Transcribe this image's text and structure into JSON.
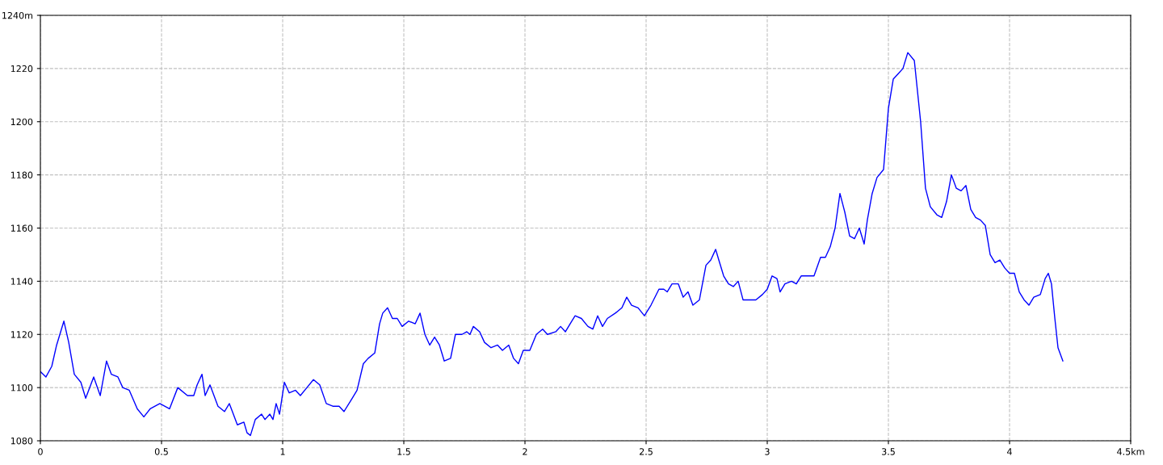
{
  "chart_data": {
    "type": "line",
    "x": [
      0,
      0.023,
      0.047,
      0.067,
      0.097,
      0.117,
      0.14,
      0.167,
      0.187,
      0.22,
      0.247,
      0.273,
      0.293,
      0.32,
      0.34,
      0.367,
      0.4,
      0.427,
      0.453,
      0.493,
      0.533,
      0.567,
      0.607,
      0.633,
      0.647,
      0.667,
      0.68,
      0.7,
      0.733,
      0.76,
      0.78,
      0.813,
      0.84,
      0.853,
      0.867,
      0.887,
      0.913,
      0.927,
      0.947,
      0.96,
      0.973,
      0.987,
      1.007,
      1.027,
      1.053,
      1.073,
      1.1,
      1.127,
      1.153,
      1.18,
      1.207,
      1.233,
      1.253,
      1.287,
      1.307,
      1.333,
      1.353,
      1.38,
      1.4,
      1.413,
      1.433,
      1.453,
      1.473,
      1.493,
      1.52,
      1.547,
      1.567,
      1.587,
      1.607,
      1.627,
      1.647,
      1.667,
      1.693,
      1.713,
      1.74,
      1.76,
      1.773,
      1.787,
      1.813,
      1.833,
      1.86,
      1.887,
      1.907,
      1.933,
      1.953,
      1.973,
      1.993,
      2.02,
      2.047,
      2.073,
      2.093,
      2.127,
      2.147,
      2.167,
      2.193,
      2.207,
      2.233,
      2.26,
      2.28,
      2.3,
      2.32,
      2.34,
      2.373,
      2.4,
      2.42,
      2.44,
      2.467,
      2.493,
      2.52,
      2.553,
      2.573,
      2.587,
      2.607,
      2.633,
      2.653,
      2.673,
      2.693,
      2.72,
      2.747,
      2.767,
      2.787,
      2.8,
      2.82,
      2.84,
      2.86,
      2.88,
      2.9,
      2.927,
      2.953,
      2.98,
      3.0,
      3.02,
      3.04,
      3.053,
      3.073,
      3.1,
      3.12,
      3.14,
      3.167,
      3.193,
      3.22,
      3.24,
      3.26,
      3.28,
      3.3,
      3.32,
      3.34,
      3.36,
      3.38,
      3.4,
      3.413,
      3.433,
      3.453,
      3.48,
      3.5,
      3.52,
      3.54,
      3.56,
      3.58,
      3.607,
      3.633,
      3.653,
      3.673,
      3.7,
      3.72,
      3.74,
      3.76,
      3.78,
      3.8,
      3.82,
      3.84,
      3.86,
      3.88,
      3.9,
      3.92,
      3.94,
      3.96,
      3.98,
      4.0,
      4.02,
      4.04,
      4.06,
      4.08,
      4.1,
      4.127,
      4.147,
      4.16,
      4.173,
      4.187,
      4.2,
      4.22
    ],
    "series": [
      {
        "color": "#0000ff",
        "values": [
          1106,
          1104,
          1108,
          1116,
          1125,
          1117,
          1105,
          1102,
          1096,
          1104,
          1097,
          1110,
          1105,
          1104,
          1100,
          1099,
          1092,
          1089,
          1092,
          1094,
          1092,
          1100,
          1097,
          1097,
          1101,
          1105,
          1097,
          1101,
          1093,
          1091,
          1094,
          1086,
          1087,
          1083,
          1082,
          1088,
          1090,
          1088,
          1090,
          1088,
          1094,
          1090,
          1102,
          1098,
          1099,
          1097,
          1100,
          1103,
          1101,
          1094,
          1093,
          1093,
          1091,
          1096,
          1099,
          1109,
          1111,
          1113,
          1124,
          1128,
          1130,
          1126,
          1126,
          1123,
          1125,
          1124,
          1128,
          1120,
          1116,
          1119,
          1116,
          1110,
          1111,
          1120,
          1120,
          1121,
          1120,
          1123,
          1121,
          1117,
          1115,
          1116,
          1114,
          1116,
          1111,
          1109,
          1114,
          1114,
          1120,
          1122,
          1120,
          1121,
          1123,
          1121,
          1125,
          1127,
          1126,
          1123,
          1122,
          1127,
          1123,
          1126,
          1128,
          1130,
          1134,
          1131,
          1130,
          1127,
          1131,
          1137,
          1137,
          1136,
          1139,
          1139,
          1134,
          1136,
          1131,
          1133,
          1146,
          1148,
          1152,
          1148,
          1142,
          1139,
          1138,
          1140,
          1133,
          1133,
          1133,
          1135,
          1137,
          1142,
          1141,
          1136,
          1139,
          1140,
          1139,
          1142,
          1142,
          1142,
          1149,
          1149,
          1153,
          1160,
          1173,
          1166,
          1157,
          1156,
          1160,
          1154,
          1163,
          1173,
          1179,
          1182,
          1205,
          1216,
          1218,
          1220,
          1226,
          1223,
          1200,
          1175,
          1168,
          1165,
          1164,
          1170,
          1180,
          1175,
          1174,
          1176,
          1167,
          1164,
          1163,
          1161,
          1150,
          1147,
          1148,
          1145,
          1143,
          1143,
          1136,
          1133,
          1131,
          1134,
          1135,
          1141,
          1143,
          1139,
          1126,
          1115,
          1110
        ]
      }
    ],
    "xlim": [
      0,
      4.5
    ],
    "xticks": [
      0,
      0.5,
      1,
      1.5,
      2,
      2.5,
      3,
      3.5,
      4,
      {
        "value": 4.5,
        "label": "4.5km"
      }
    ],
    "ylim": [
      1080,
      1240
    ],
    "yticks": [
      1080,
      1100,
      1120,
      1140,
      1160,
      1180,
      1200,
      1220,
      {
        "value": 1240,
        "label": "1240m"
      }
    ],
    "grid": true,
    "line_style": "solid"
  }
}
